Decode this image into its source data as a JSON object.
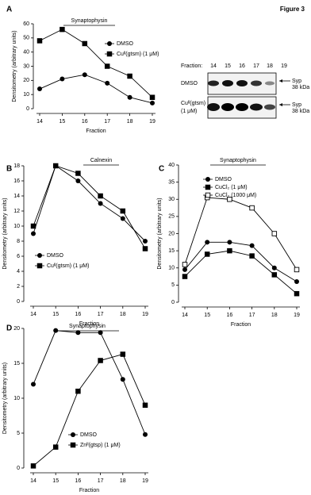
{
  "figure_label": "Figure 3",
  "blot": {
    "fraction_label": "Fraction:",
    "fractions": [
      "14",
      "15",
      "16",
      "17",
      "18",
      "19"
    ],
    "rows": [
      {
        "label": [
          "DMSO"
        ],
        "band": [
          "Syp",
          "38 kDa"
        ]
      },
      {
        "label": [
          "Cuᴵᴵ(gtsm)",
          "(1 μM)"
        ],
        "band": [
          "Syp",
          "38 kDa"
        ]
      }
    ]
  },
  "chart_data": [
    {
      "type": "line",
      "panel": "A",
      "annotation": "Synaptophysin",
      "xlabel": "Fraction",
      "ylabel": "Densitometry (arbitrary units)",
      "categories": [
        "14",
        "15",
        "16",
        "17",
        "18",
        "19"
      ],
      "ylim": [
        0,
        60
      ],
      "yticks": [
        0,
        10,
        20,
        30,
        40,
        50,
        60
      ],
      "series": [
        {
          "name": "DMSO",
          "color": "#000000",
          "marker": "circle",
          "values": [
            14,
            21,
            24,
            18,
            8,
            4
          ]
        },
        {
          "name": "Cuᴵᴵ(gtsm) (1 μM)",
          "color": "#000000",
          "marker": "square",
          "values": [
            48,
            56,
            46,
            30,
            23,
            8
          ]
        }
      ]
    },
    {
      "type": "line",
      "panel": "B",
      "annotation": "Calnexin",
      "xlabel": "Fraction",
      "ylabel": "Densitometry (arbitrary units)",
      "categories": [
        "14",
        "15",
        "16",
        "17",
        "18",
        "19"
      ],
      "ylim": [
        0,
        18
      ],
      "yticks": [
        0,
        2,
        4,
        6,
        8,
        10,
        12,
        14,
        16,
        18
      ],
      "series": [
        {
          "name": "DMSO",
          "color": "#000000",
          "marker": "circle",
          "values": [
            9,
            18,
            16,
            13,
            11,
            8
          ]
        },
        {
          "name": "Cuᴵᴵ(gtsm) (1 μM)",
          "color": "#000000",
          "marker": "square",
          "values": [
            10,
            18,
            17,
            14,
            12,
            7
          ]
        }
      ]
    },
    {
      "type": "line",
      "panel": "C",
      "annotation": "Synaptophysin",
      "xlabel": "Fraction",
      "ylabel": "Densitometry (arbitrary units)",
      "categories": [
        "14",
        "15",
        "16",
        "17",
        "18",
        "19"
      ],
      "ylim": [
        0,
        40
      ],
      "yticks": [
        0,
        5,
        10,
        15,
        20,
        25,
        30,
        35,
        40
      ],
      "series": [
        {
          "name": "DMSO",
          "color": "#000000",
          "marker": "circle",
          "values": [
            9.5,
            17.5,
            17.5,
            16.5,
            10,
            6
          ]
        },
        {
          "name": "CuCl₂ (1 μM)",
          "color": "#000000",
          "marker": "square",
          "values": [
            7.5,
            14,
            15,
            13.5,
            8,
            2.5
          ]
        },
        {
          "name": "CuCl₂ (1000 μM)",
          "color": "#000000",
          "marker": "open-square",
          "values": [
            11,
            30.5,
            30,
            27.5,
            20,
            9.5
          ]
        }
      ]
    },
    {
      "type": "line",
      "panel": "D",
      "annotation": "Synaptophysin",
      "xlabel": "Fraction",
      "ylabel": "Densitometry (arbitrary units)",
      "categories": [
        "14",
        "15",
        "16",
        "17",
        "18",
        "19"
      ],
      "ylim": [
        0,
        20
      ],
      "yticks": [
        0,
        5,
        10,
        15,
        20
      ],
      "series": [
        {
          "name": "DMSO",
          "color": "#000000",
          "marker": "circle",
          "values": [
            12,
            19.7,
            19.4,
            19.4,
            12.7,
            4.8
          ]
        },
        {
          "name": "Znᴵᴵ(gtsp) (1 μM)",
          "color": "#000000",
          "marker": "square",
          "values": [
            0.3,
            3,
            11,
            15.4,
            16.3,
            9
          ]
        }
      ]
    }
  ]
}
